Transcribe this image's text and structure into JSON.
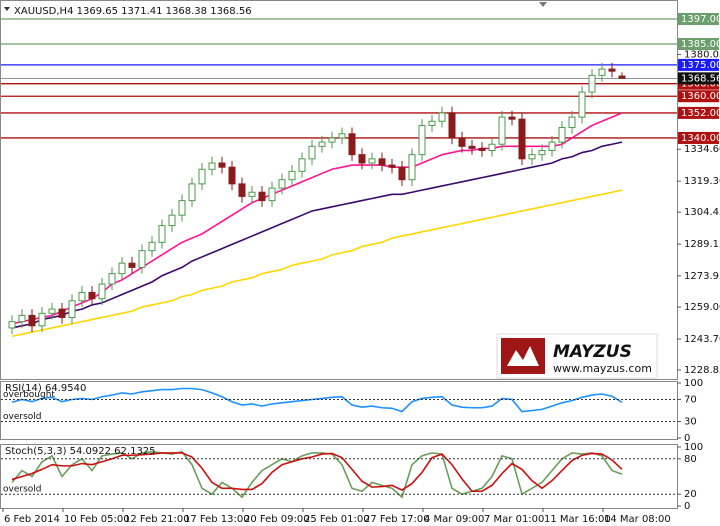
{
  "chart_data": [
    {
      "type": "candlestick",
      "title": "XAUUSD,H4  1369.65 1371.41 1368.38 1368.56",
      "categories": [
        null,
        "6 Feb 2014",
        null,
        null,
        null,
        null,
        null,
        "10 Feb 05:00",
        null,
        null,
        null,
        null,
        null,
        "12 Feb 21:00",
        null,
        null,
        null,
        null,
        null,
        "17 Feb 13:00",
        null,
        null,
        null,
        null,
        null,
        "20 Feb 09:00",
        null,
        null,
        null,
        null,
        null,
        "25 Feb 01:00",
        null,
        null,
        null,
        null,
        null,
        "27 Feb 17:00",
        null,
        null,
        null,
        null,
        null,
        "4 Mar 09:00",
        null,
        null,
        null,
        null,
        null,
        "7 Mar 01:00",
        null,
        null,
        null,
        null,
        null,
        "11 Mar 16:00",
        null,
        null,
        null,
        null,
        null,
        "14 Mar 08:00"
      ],
      "open": [
        1249,
        1252,
        1255,
        1250,
        1256,
        1258,
        1254,
        1262,
        1266,
        1263,
        1270,
        1275,
        1280,
        1278,
        1286,
        1290,
        1298,
        1303,
        1310,
        1318,
        1325,
        1328,
        1326,
        1318,
        1312,
        1314,
        1310,
        1316,
        1320,
        1324,
        1330,
        1336,
        1338,
        1340,
        1342,
        1332,
        1328,
        1330,
        1327,
        1326,
        1320,
        1332,
        1346,
        1348,
        1352,
        1340,
        1336,
        1335,
        1334,
        1337,
        1350,
        1349,
        1330,
        1332,
        1334,
        1338,
        1345,
        1350,
        1362,
        1370,
        1373,
        1369.65
      ],
      "high": [
        1255,
        1258,
        1258,
        1259,
        1261,
        1261,
        1265,
        1269,
        1269,
        1273,
        1278,
        1283,
        1283,
        1289,
        1293,
        1301,
        1306,
        1313,
        1321,
        1328,
        1331,
        1331,
        1329,
        1321,
        1317,
        1317,
        1319,
        1323,
        1327,
        1333,
        1339,
        1341,
        1343,
        1345,
        1345,
        1335,
        1333,
        1333,
        1330,
        1329,
        1335,
        1349,
        1351,
        1355,
        1355,
        1343,
        1339,
        1338,
        1340,
        1353,
        1353,
        1352,
        1335,
        1337,
        1341,
        1348,
        1353,
        1365,
        1373,
        1376,
        1376,
        1371.41
      ],
      "low": [
        1246,
        1249,
        1247,
        1247,
        1253,
        1251,
        1251,
        1259,
        1260,
        1260,
        1267,
        1272,
        1275,
        1275,
        1283,
        1287,
        1295,
        1300,
        1307,
        1315,
        1322,
        1323,
        1315,
        1309,
        1309,
        1307,
        1307,
        1313,
        1317,
        1321,
        1327,
        1333,
        1335,
        1337,
        1329,
        1325,
        1325,
        1324,
        1323,
        1317,
        1317,
        1329,
        1343,
        1345,
        1337,
        1333,
        1332,
        1331,
        1331,
        1334,
        1346,
        1327,
        1327,
        1329,
        1331,
        1335,
        1342,
        1347,
        1359,
        1367,
        1369,
        1368.38
      ],
      "close": [
        1252,
        1255,
        1250,
        1256,
        1258,
        1254,
        1262,
        1266,
        1263,
        1270,
        1275,
        1280,
        1278,
        1286,
        1290,
        1298,
        1303,
        1310,
        1318,
        1325,
        1328,
        1326,
        1318,
        1312,
        1314,
        1310,
        1316,
        1320,
        1324,
        1330,
        1336,
        1338,
        1340,
        1342,
        1332,
        1328,
        1330,
        1327,
        1326,
        1320,
        1332,
        1346,
        1348,
        1352,
        1340,
        1336,
        1335,
        1334,
        1337,
        1350,
        1349,
        1330,
        1332,
        1334,
        1338,
        1345,
        1350,
        1362,
        1370,
        1373,
        1372,
        1368.56
      ],
      "up_color": "#4e9a4e",
      "down_color": "#8b1a1a",
      "series": [
        {
          "color": "#ff1493",
          "values": [
            1251,
            1252,
            1253,
            1254,
            1255,
            1257,
            1259,
            1261,
            1263,
            1266,
            1270,
            1272,
            1275,
            1278,
            1281,
            1284,
            1287,
            1290,
            1292,
            1294,
            1297,
            1300,
            1303,
            1306,
            1309,
            1311,
            1313,
            1315,
            1317,
            1319,
            1321,
            1323,
            1325,
            1326,
            1327,
            1327,
            1327,
            1327,
            1326,
            1326,
            1326,
            1328,
            1330,
            1332,
            1333,
            1334,
            1334,
            1335,
            1335,
            1336,
            1336,
            1336,
            1336,
            1336,
            1336,
            1337,
            1340,
            1343,
            1346,
            1348,
            1350,
            1352
          ]
        },
        {
          "color": "#3a0a6e",
          "values": [
            1249,
            1250,
            1251,
            1253,
            1254,
            1255,
            1257,
            1258,
            1260,
            1261,
            1263,
            1265,
            1267,
            1269,
            1271,
            1274,
            1276,
            1278,
            1281,
            1283,
            1285,
            1287,
            1289,
            1291,
            1293,
            1295,
            1297,
            1299,
            1301,
            1303,
            1305,
            1306,
            1307,
            1308,
            1309,
            1310,
            1311,
            1312,
            1313,
            1313,
            1314,
            1315,
            1316,
            1317,
            1318,
            1319,
            1320,
            1321,
            1322,
            1323,
            1324,
            1325,
            1326,
            1327,
            1328,
            1330,
            1331,
            1333,
            1334,
            1336,
            1337,
            1338
          ]
        },
        {
          "color": "#ffd700",
          "values": [
            1245,
            1246,
            1247,
            1248,
            1249,
            1250,
            1251,
            1252,
            1253,
            1254,
            1255,
            1256,
            1257,
            1259,
            1260,
            1261,
            1262,
            1264,
            1265,
            1267,
            1268,
            1269,
            1271,
            1272,
            1273,
            1275,
            1276,
            1277,
            1279,
            1280,
            1281,
            1282,
            1284,
            1285,
            1286,
            1288,
            1289,
            1290,
            1292,
            1293,
            1294,
            1295,
            1296,
            1297,
            1298,
            1299,
            1300,
            1301,
            1302,
            1303,
            1304,
            1305,
            1306,
            1307,
            1308,
            1309,
            1310,
            1311,
            1312,
            1313,
            1314,
            1315
          ]
        }
      ],
      "ylim": [
        1225.0,
        1403.7
      ],
      "yticks": [
        1380.05,
        {
          "value": 1334.6,
          "label": "1334.60"
        },
        {
          "value": 1319.3,
          "label": "1319.30"
        },
        1304.45,
        1289.15,
        1273.95,
        {
          "value": 1259,
          "label": "1259.00"
        },
        {
          "value": 1243.7,
          "label": "1243.70"
        },
        1228.85
      ],
      "levels": [
        {
          "value": 1397,
          "label": "1397.00",
          "color": "#6a9e6a"
        },
        {
          "value": 1385,
          "label": "1385.00",
          "color": "#6a9e6a"
        },
        {
          "value": 1375,
          "label": "1375.00",
          "color": "#1a1aff"
        },
        {
          "value": 1366,
          "label": "1366.00",
          "color": "#b01010"
        },
        {
          "value": 1360,
          "label": "1360.00",
          "color": "#b01010"
        },
        {
          "value": 1352,
          "label": "1352.00",
          "color": "#b01010"
        },
        {
          "value": 1340,
          "label": "1340.00",
          "color": "#b01010"
        }
      ],
      "last_price": 1368.56
    },
    {
      "type": "line",
      "title": "RSI(14) 64.9540",
      "series": [
        {
          "color": "#1e90ff",
          "values": [
            65,
            70,
            66,
            72,
            74,
            66,
            70,
            72,
            70,
            75,
            78,
            82,
            80,
            84,
            86,
            88,
            88,
            90,
            90,
            88,
            82,
            75,
            66,
            60,
            62,
            58,
            62,
            64,
            66,
            68,
            70,
            72,
            74,
            75,
            60,
            56,
            58,
            55,
            54,
            48,
            66,
            72,
            74,
            75,
            60,
            56,
            55,
            55,
            58,
            72,
            70,
            48,
            50,
            52,
            58,
            64,
            68,
            74,
            78,
            80,
            76,
            64.954
          ]
        }
      ],
      "ylim": [
        0,
        100
      ],
      "yticks": [
        0,
        30,
        70,
        100
      ],
      "levels": [
        {
          "value": 70,
          "label": "overbought"
        },
        {
          "value": 30,
          "label": "oversold"
        }
      ]
    },
    {
      "type": "line",
      "title": "Stoch(5,3,3) 54.0922 62.1325",
      "series": [
        {
          "color": "#6b9e5b",
          "values": [
            40,
            60,
            50,
            75,
            85,
            50,
            70,
            80,
            60,
            85,
            88,
            90,
            80,
            90,
            92,
            90,
            88,
            92,
            70,
            30,
            20,
            40,
            30,
            15,
            40,
            60,
            70,
            80,
            75,
            85,
            90,
            90,
            88,
            70,
            30,
            25,
            40,
            35,
            30,
            15,
            70,
            85,
            90,
            88,
            30,
            20,
            25,
            30,
            50,
            85,
            80,
            20,
            30,
            40,
            60,
            80,
            90,
            88,
            90,
            85,
            60,
            54.0922
          ]
        },
        {
          "color": "#cc1010",
          "values": [
            45,
            50,
            55,
            62,
            70,
            68,
            68,
            72,
            70,
            75,
            80,
            86,
            86,
            87,
            88,
            90,
            90,
            90,
            83,
            64,
            40,
            30,
            30,
            28,
            28,
            38,
            57,
            70,
            75,
            80,
            83,
            88,
            89,
            82,
            62,
            42,
            32,
            33,
            35,
            27,
            38,
            57,
            82,
            88,
            70,
            46,
            25,
            25,
            35,
            55,
            72,
            62,
            43,
            30,
            43,
            60,
            77,
            86,
            89,
            88,
            78,
            62.1325
          ]
        }
      ],
      "ylim": [
        0,
        100
      ],
      "yticks": [
        0,
        20,
        80,
        100
      ],
      "levels": [
        {
          "value": 80
        },
        {
          "value": 20,
          "label": "oversold"
        }
      ]
    }
  ],
  "watermark": {
    "name": "MAYZUS",
    "url": "www.mayzus.com"
  }
}
